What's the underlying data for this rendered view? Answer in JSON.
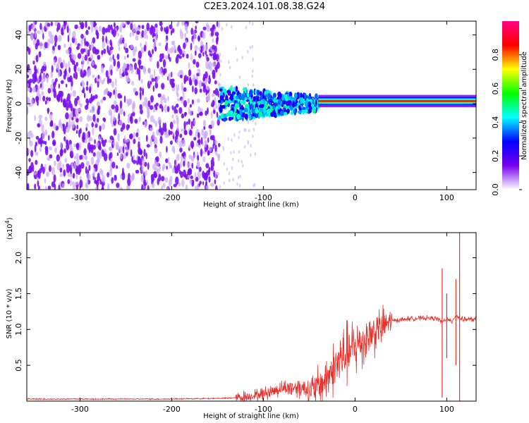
{
  "title": "C2E3.2024.101.08.38.G24",
  "chart_data": [
    {
      "type": "heatmap",
      "xlabel": "Height of straight line (km)",
      "ylabel": "Frequency (Hz)",
      "xlim": [
        -358,
        132
      ],
      "ylim": [
        -50,
        48
      ],
      "xticks": [
        -300,
        -200,
        -100,
        0,
        100
      ],
      "yticks": [
        -40,
        -20,
        0,
        20,
        40
      ],
      "xtick_labels": [
        "-300",
        "-200",
        "-100",
        "0",
        "100"
      ],
      "ytick_labels": [
        "-40",
        "-20",
        "0",
        "20",
        "40"
      ],
      "grid": false,
      "colorbar": {
        "label": "Normalized spectral amplitude",
        "range": [
          0,
          1
        ],
        "ticks": [
          0.0,
          0.2,
          0.4,
          0.6,
          0.8
        ],
        "tick_labels": [
          "0.0",
          "0.2",
          "0.4",
          "0.6",
          "0.8"
        ],
        "colormap": [
          "#ffffff",
          "#7700ee",
          "#0000ff",
          "#00ffff",
          "#00ff00",
          "#ffff00",
          "#ff0000",
          "#ff0080"
        ]
      },
      "regions": [
        {
          "x_range": [
            -358,
            -148
          ],
          "freq_range": [
            -50,
            48
          ],
          "amplitude": 0.15
        },
        {
          "x_range": [
            -148,
            -40
          ],
          "freq_range": [
            -10,
            12
          ],
          "amplitude": 0.35
        },
        {
          "x_range": [
            -40,
            132
          ],
          "freq_center": 1.5,
          "freq_halfwidth": 2,
          "amplitude": 0.9
        }
      ],
      "colors": {
        "noise": "#7a10f0",
        "background": "#ffffff"
      }
    },
    {
      "type": "line",
      "xlabel": "Height of straight line (km)",
      "ylabel": "SNR (10 * v/v)",
      "y_multiplier": "(x10",
      "y_multiplier_exp": "4",
      "y_multiplier_close": ")",
      "xlim": [
        -358,
        132
      ],
      "ylim": [
        0,
        2.35
      ],
      "xticks": [
        -300,
        -200,
        -100,
        0,
        100
      ],
      "yticks": [
        0.5,
        1.0,
        1.5,
        2.0
      ],
      "xtick_labels": [
        "-300",
        "-200",
        "-100",
        "0",
        "100"
      ],
      "ytick_labels": [
        "0.5",
        "1.0",
        "1.5",
        "2.0"
      ],
      "grid": false,
      "series": [
        {
          "color": "#e8302a",
          "x": [
            -358,
            -300,
            -200,
            -140,
            -120,
            -100,
            -80,
            -60,
            -45,
            -40,
            -30,
            -20,
            -10,
            0,
            10,
            20,
            30,
            40,
            60,
            80,
            90,
            95,
            100,
            105,
            110,
            115,
            120,
            132
          ],
          "y": [
            0.03,
            0.03,
            0.03,
            0.04,
            0.06,
            0.1,
            0.18,
            0.2,
            0.15,
            0.2,
            0.35,
            0.5,
            0.65,
            0.75,
            0.85,
            0.95,
            1.05,
            1.12,
            1.15,
            1.16,
            1.15,
            1.1,
            1.15,
            1.1,
            1.2,
            1.15,
            1.14,
            1.14
          ],
          "spikes": [
            {
              "x": 95,
              "min": 0.05,
              "max": 1.85
            },
            {
              "x": 100,
              "min": 0.6,
              "max": 1.5
            },
            {
              "x": 110,
              "min": 0.5,
              "max": 1.7
            },
            {
              "x": 114,
              "min": 0.0,
              "max": 2.35
            }
          ]
        }
      ]
    }
  ]
}
